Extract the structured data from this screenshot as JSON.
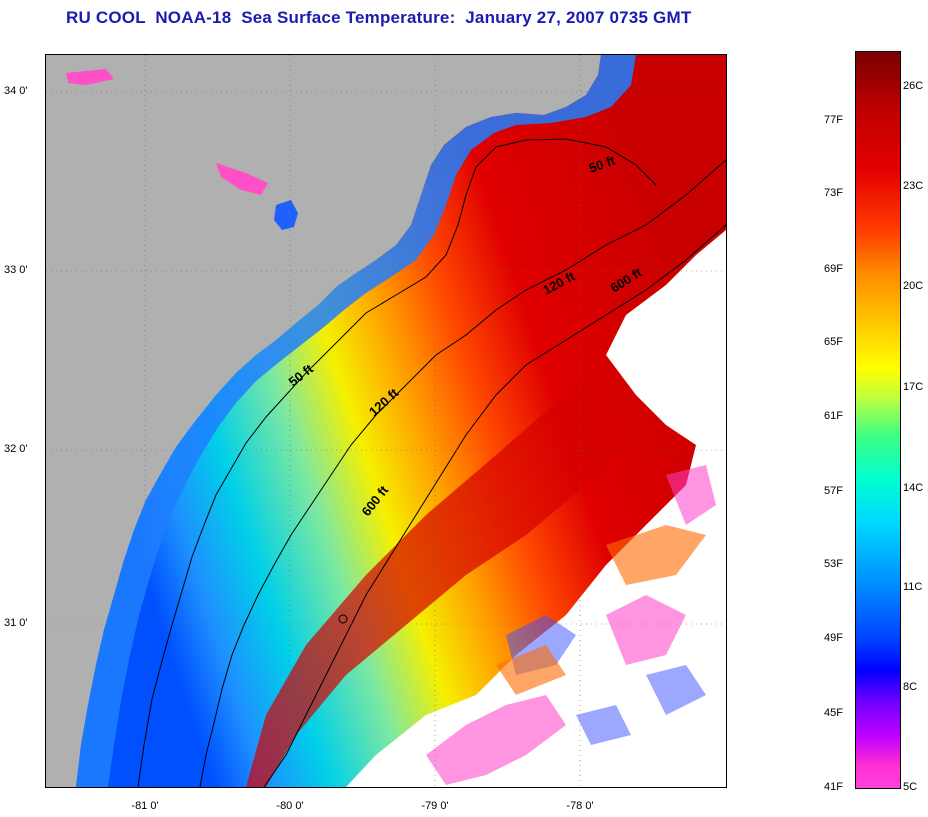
{
  "title": "RU COOL  NOAA-18  Sea Surface Temperature:  January 27, 2007 0735 GMT",
  "map": {
    "lat_labels": [
      "34 0'",
      "33 0'",
      "32 0'",
      "31 0'"
    ],
    "lon_labels": [
      "-81 0'",
      "-80 0'",
      "-79 0'",
      "-78 0'"
    ],
    "contours": [
      "50 ft",
      "120 ft",
      "600 ft",
      "50 ft",
      "120 ft",
      "600 ft"
    ],
    "colors": {
      "land": "#b0b0b0",
      "cloud": "#ffffff",
      "nearshore": "#1e90ff",
      "shelf": "#00e5e5",
      "midshelf": "#f5f500",
      "outer": "#ff8c00",
      "gulfstream": "#e60000"
    }
  },
  "colorbar": {
    "fahrenheit": [
      "77F",
      "73F",
      "69F",
      "65F",
      "61F",
      "57F",
      "53F",
      "49F",
      "45F",
      "41F"
    ],
    "celsius": [
      "26C",
      "23C",
      "20C",
      "17C",
      "14C",
      "11C",
      "8C",
      "5C"
    ]
  }
}
